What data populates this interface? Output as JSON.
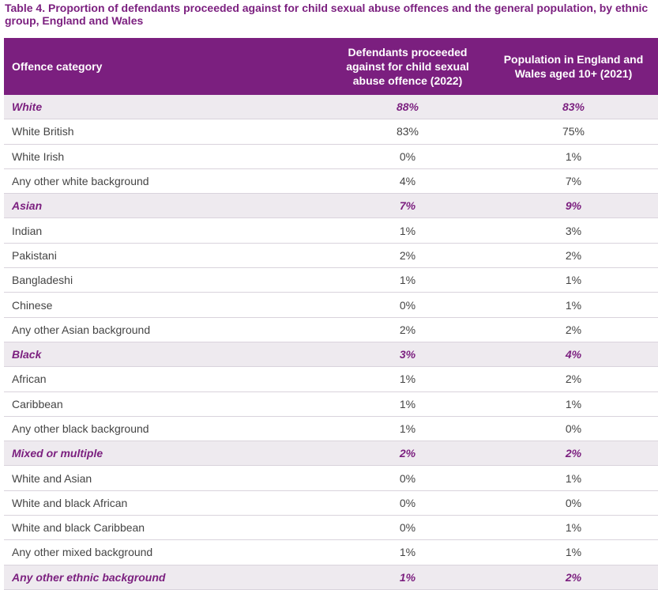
{
  "title": "Table 4. Proportion of defendants proceeded against for child sexual abuse offences and the general population, by ethnic group, England and Wales",
  "header": {
    "category": "Offence category",
    "defendants": "Defendants proceeded against for child sexual abuse offence (2022)",
    "population": "Population in England and Wales aged 10+ (2021)"
  },
  "colors": {
    "accent": "#7b1f7f",
    "group_bg": "#eeeaef",
    "text": "#444444",
    "divider": "#d9d3dc"
  },
  "rows": [
    {
      "label": "White",
      "defendants": "88%",
      "population": "83%",
      "group": true
    },
    {
      "label": "White British",
      "defendants": "83%",
      "population": "75%",
      "group": false
    },
    {
      "label": "White Irish",
      "defendants": "0%",
      "population": "1%",
      "group": false
    },
    {
      "label": "Any other white background",
      "defendants": "4%",
      "population": "7%",
      "group": false
    },
    {
      "label": "Asian",
      "defendants": "7%",
      "population": "9%",
      "group": true
    },
    {
      "label": "Indian",
      "defendants": "1%",
      "population": "3%",
      "group": false
    },
    {
      "label": "Pakistani",
      "defendants": "2%",
      "population": "2%",
      "group": false
    },
    {
      "label": "Bangladeshi",
      "defendants": "1%",
      "population": "1%",
      "group": false
    },
    {
      "label": "Chinese",
      "defendants": "0%",
      "population": "1%",
      "group": false
    },
    {
      "label": "Any other Asian background",
      "defendants": "2%",
      "population": "2%",
      "group": false
    },
    {
      "label": "Black",
      "defendants": "3%",
      "population": "4%",
      "group": true
    },
    {
      "label": "African",
      "defendants": "1%",
      "population": "2%",
      "group": false
    },
    {
      "label": "Caribbean",
      "defendants": "1%",
      "population": "1%",
      "group": false
    },
    {
      "label": "Any other black background",
      "defendants": "1%",
      "population": "0%",
      "group": false
    },
    {
      "label": "Mixed or multiple",
      "defendants": "2%",
      "population": "2%",
      "group": true
    },
    {
      "label": "White and Asian",
      "defendants": "0%",
      "population": "1%",
      "group": false
    },
    {
      "label": "White and black African",
      "defendants": "0%",
      "population": "0%",
      "group": false
    },
    {
      "label": "White and black Caribbean",
      "defendants": "0%",
      "population": "1%",
      "group": false
    },
    {
      "label": "Any other mixed background",
      "defendants": "1%",
      "population": "1%",
      "group": false
    },
    {
      "label": "Any other ethnic background",
      "defendants": "1%",
      "population": "2%",
      "group": true
    }
  ]
}
